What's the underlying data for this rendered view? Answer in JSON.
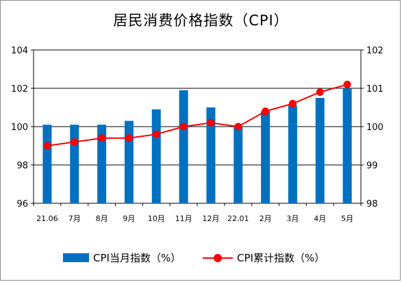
{
  "chart_data": {
    "type": "bar+line",
    "title": "居民消费价格指数（CPI）",
    "categories": [
      "21.06",
      "7月",
      "8月",
      "9月",
      "10月",
      "11月",
      "12月",
      "22.01",
      "2月",
      "3月",
      "4月",
      "5月"
    ],
    "series": [
      {
        "name": "CPI当月指数（%）",
        "type": "bar",
        "axis": "left",
        "color": "#0070c0",
        "values": [
          100.1,
          100.1,
          100.1,
          100.3,
          100.9,
          101.9,
          101.0,
          100.0,
          100.8,
          101.1,
          101.5,
          102.0
        ]
      },
      {
        "name": "CPI累计指数（%）",
        "type": "line",
        "axis": "right",
        "color": "#ff0000",
        "values": [
          99.5,
          99.6,
          99.7,
          99.7,
          99.8,
          100.0,
          100.1,
          100.0,
          100.4,
          100.6,
          100.9,
          101.1
        ]
      }
    ],
    "left_axis": {
      "min": 96,
      "max": 104,
      "ticks": [
        "96",
        "98",
        "100",
        "102",
        "104"
      ]
    },
    "right_axis": {
      "min": 98,
      "max": 102,
      "ticks": [
        "98",
        "99",
        "100",
        "101",
        "102"
      ]
    },
    "grid": true,
    "legend_position": "bottom"
  }
}
